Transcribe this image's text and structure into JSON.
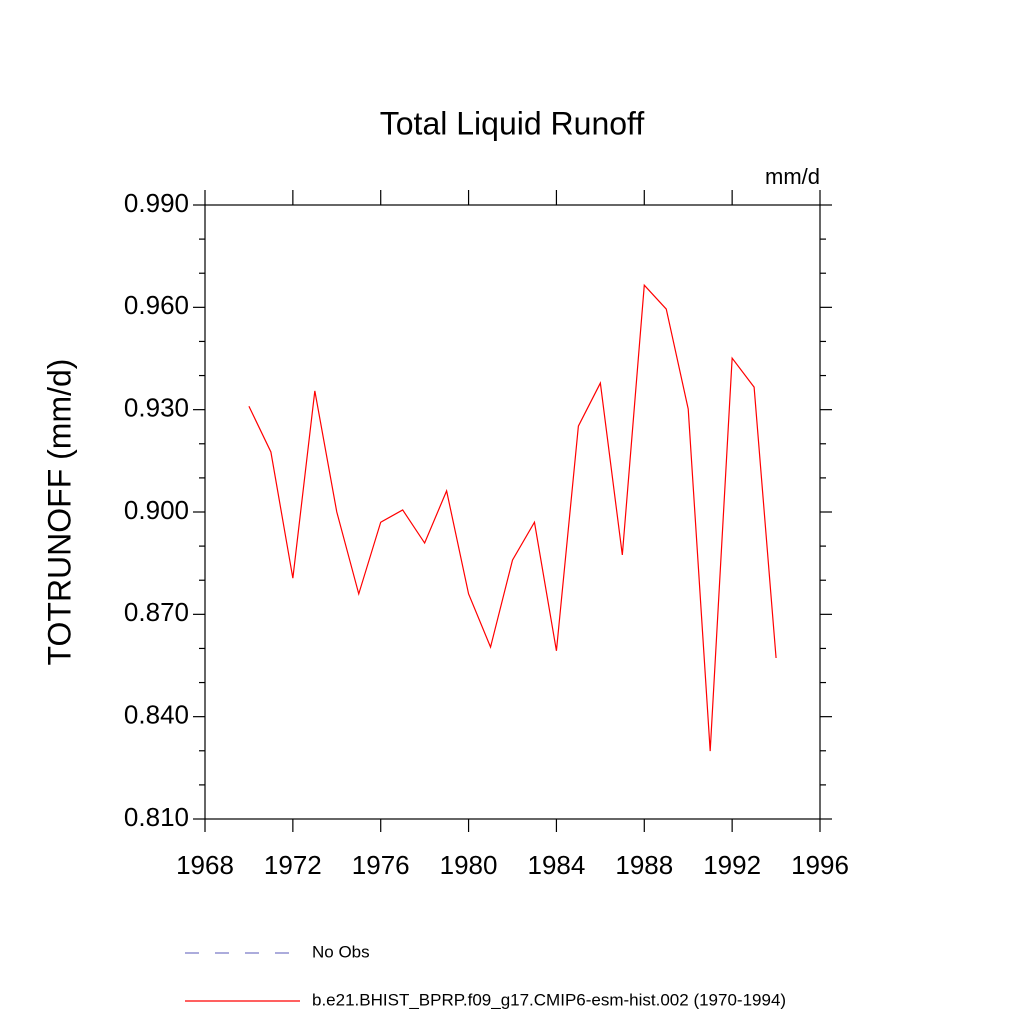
{
  "chart_data": {
    "type": "line",
    "title": "Total Liquid Runoff",
    "units": "mm/d",
    "ylabel": "TOTRUNOFF  (mm/d)",
    "x": [
      1970,
      1971,
      1972,
      1973,
      1974,
      1975,
      1976,
      1977,
      1978,
      1979,
      1980,
      1981,
      1982,
      1983,
      1984,
      1985,
      1986,
      1987,
      1988,
      1989,
      1990,
      1991,
      1992,
      1993,
      1994
    ],
    "series": [
      {
        "name": "No Obs",
        "color": "#7b7bc8",
        "dashed": true
      },
      {
        "name": "b.e21.BHIST_BPRP.f09_g17.CMIP6-esm-hist.002 (1970-1994)",
        "color": "#ff0000",
        "values": [
          0.931,
          0.9176,
          0.8806,
          0.9355,
          0.9,
          0.876,
          0.897,
          0.9006,
          0.8909,
          0.9062,
          0.876,
          0.8604,
          0.8859,
          0.897,
          0.8593,
          0.9252,
          0.9378,
          0.8874,
          0.9665,
          0.9595,
          0.9302,
          0.8299,
          0.9451,
          0.9366,
          0.8572
        ]
      }
    ],
    "xlim": [
      1968,
      1996
    ],
    "xticks": [
      1968,
      1972,
      1976,
      1980,
      1984,
      1988,
      1992,
      1996
    ],
    "ylim": [
      0.81,
      0.99
    ],
    "yticks": [
      {
        "value": 0.81,
        "label": "0.810"
      },
      {
        "value": 0.84,
        "label": "0.840"
      },
      {
        "value": 0.87,
        "label": "0.870"
      },
      {
        "value": 0.9,
        "label": "0.900"
      },
      {
        "value": 0.93,
        "label": "0.930"
      },
      {
        "value": 0.96,
        "label": "0.960"
      },
      {
        "value": 0.99,
        "label": "0.990"
      }
    ],
    "y_minor_ticks": [
      0.82,
      0.83,
      0.85,
      0.86,
      0.88,
      0.89,
      0.91,
      0.92,
      0.94,
      0.95,
      0.97,
      0.98
    ]
  }
}
